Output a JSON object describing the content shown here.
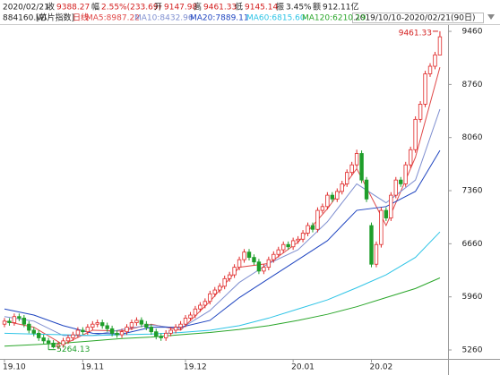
{
  "chart_data": {
    "type": "candlestick",
    "date": "2020/02/21",
    "info": [
      {
        "label": "收",
        "value": "9388.27",
        "color": "#d42020"
      },
      {
        "label": "幅",
        "value": "2.55%(233.69)",
        "color": "#d42020"
      },
      {
        "label": "开",
        "value": "9147.98",
        "color": "#d42020"
      },
      {
        "label": "高",
        "value": "9461.33",
        "color": "#d42020"
      },
      {
        "label": "低",
        "value": "9145.14",
        "color": "#d42020"
      },
      {
        "label": "振",
        "value": "3.45%",
        "color": "#222222"
      },
      {
        "label": "额",
        "value": "912.11亿",
        "color": "#222222"
      }
    ],
    "code": "884160.WI",
    "name": "[芯片指数]",
    "period": "日线",
    "range": "2019/10/10-2020/02/21(90日)",
    "categories": [
      "19.10",
      null,
      null,
      null,
      null,
      null,
      null,
      null,
      null,
      null,
      null,
      null,
      null,
      null,
      null,
      null,
      "19.11",
      null,
      null,
      null,
      null,
      null,
      null,
      null,
      null,
      null,
      null,
      null,
      null,
      null,
      null,
      null,
      null,
      null,
      null,
      null,
      null,
      "19.12",
      null,
      null,
      null,
      null,
      null,
      null,
      null,
      null,
      null,
      null,
      null,
      null,
      null,
      null,
      null,
      null,
      null,
      null,
      null,
      null,
      null,
      "20.01",
      null,
      null,
      null,
      null,
      null,
      null,
      null,
      null,
      null,
      null,
      null,
      null,
      null,
      null,
      null,
      "20.02",
      null,
      null,
      null,
      null,
      null,
      null,
      null,
      null,
      null,
      null,
      null,
      null,
      null,
      null
    ],
    "open": [
      5600,
      5640,
      5620,
      5700,
      5680,
      5600,
      5520,
      5480,
      5420,
      5380,
      5350,
      5300,
      5330,
      5380,
      5420,
      5460,
      5520,
      5500,
      5560,
      5600,
      5620,
      5580,
      5540,
      5480,
      5460,
      5500,
      5560,
      5620,
      5650,
      5600,
      5560,
      5500,
      5440,
      5420,
      5480,
      5520,
      5560,
      5600,
      5680,
      5720,
      5800,
      5850,
      5900,
      6000,
      6050,
      6100,
      6200,
      6250,
      6350,
      6450,
      6550,
      6480,
      6420,
      6300,
      6350,
      6450,
      6520,
      6580,
      6650,
      6620,
      6700,
      6720,
      6800,
      6900,
      6850,
      7100,
      7150,
      7300,
      7250,
      7350,
      7450,
      7600,
      7700,
      7850,
      7500,
      6900,
      6390,
      6650,
      7100,
      7000,
      7300,
      7500,
      7450,
      7700,
      7900,
      8300,
      8500,
      8900,
      9000,
      9147.98
    ],
    "high": [
      5680,
      5680,
      5740,
      5740,
      5720,
      5640,
      5560,
      5520,
      5460,
      5420,
      5390,
      5370,
      5420,
      5460,
      5500,
      5560,
      5560,
      5600,
      5640,
      5660,
      5660,
      5620,
      5580,
      5520,
      5540,
      5600,
      5660,
      5690,
      5690,
      5640,
      5600,
      5540,
      5480,
      5520,
      5560,
      5600,
      5640,
      5720,
      5760,
      5840,
      5890,
      5940,
      6040,
      6090,
      6140,
      6240,
      6290,
      6390,
      6490,
      6590,
      6590,
      6520,
      6460,
      6390,
      6490,
      6560,
      6620,
      6690,
      6690,
      6740,
      6760,
      6840,
      6940,
      6940,
      7140,
      7190,
      7340,
      7340,
      7390,
      7490,
      7640,
      7740,
      7900,
      7890,
      7540,
      6940,
      6690,
      7140,
      7140,
      7340,
      7540,
      7540,
      7740,
      7940,
      8340,
      8540,
      8940,
      9040,
      9190,
      9461.33
    ],
    "low": [
      5560,
      5580,
      5580,
      5640,
      5560,
      5480,
      5440,
      5380,
      5340,
      5264.13,
      5280,
      5270,
      5290,
      5340,
      5380,
      5420,
      5460,
      5460,
      5520,
      5560,
      5540,
      5500,
      5440,
      5420,
      5420,
      5460,
      5520,
      5580,
      5560,
      5520,
      5460,
      5400,
      5380,
      5380,
      5440,
      5480,
      5520,
      5560,
      5640,
      5680,
      5760,
      5810,
      5860,
      5960,
      6010,
      6060,
      6160,
      6210,
      6310,
      6410,
      6440,
      6380,
      6260,
      6260,
      6310,
      6410,
      6480,
      6540,
      6580,
      6580,
      6660,
      6680,
      6760,
      6810,
      6810,
      7060,
      7110,
      7210,
      7210,
      7310,
      7410,
      7560,
      7660,
      7460,
      7210,
      6350,
      6350,
      6610,
      6960,
      6960,
      7260,
      7410,
      7410,
      7660,
      7860,
      8260,
      8460,
      8860,
      8960,
      9145.14
    ],
    "close": [
      5640,
      5620,
      5700,
      5680,
      5600,
      5520,
      5480,
      5420,
      5380,
      5350,
      5300,
      5330,
      5380,
      5420,
      5460,
      5520,
      5500,
      5560,
      5600,
      5620,
      5580,
      5540,
      5480,
      5460,
      5500,
      5560,
      5620,
      5650,
      5600,
      5560,
      5500,
      5440,
      5420,
      5480,
      5520,
      5560,
      5600,
      5680,
      5720,
      5800,
      5850,
      5900,
      6000,
      6050,
      6100,
      6200,
      6250,
      6350,
      6450,
      6550,
      6480,
      6420,
      6300,
      6350,
      6450,
      6520,
      6580,
      6650,
      6620,
      6700,
      6720,
      6800,
      6900,
      6850,
      7100,
      7150,
      7300,
      7250,
      7350,
      7450,
      7600,
      7700,
      7850,
      7500,
      7250,
      6390,
      6650,
      7100,
      7000,
      7300,
      7500,
      7450,
      7700,
      7900,
      8300,
      8500,
      8900,
      9000,
      9150,
      9388.27
    ],
    "up_color": "#e02828",
    "down_color": "#1e9e2a",
    "series": [
      {
        "name": "MA5:8987.22",
        "color": "#e04848",
        "x": [
          0,
          6,
          12,
          18,
          24,
          30,
          36,
          42,
          48,
          54,
          60,
          66,
          72,
          78,
          84,
          89
        ],
        "values": [
          5640,
          5560,
          5330,
          5520,
          5510,
          5600,
          5520,
          5900,
          6350,
          6400,
          6680,
          7120,
          7650,
          6900,
          7800,
          8987.22
        ]
      },
      {
        "name": "MA10:8432.96",
        "color": "#7f8fd0",
        "x": [
          0,
          6,
          12,
          18,
          24,
          30,
          36,
          42,
          48,
          54,
          60,
          66,
          72,
          78,
          84,
          89
        ],
        "values": [
          5700,
          5640,
          5450,
          5450,
          5530,
          5590,
          5540,
          5780,
          6150,
          6400,
          6580,
          6950,
          7450,
          7200,
          7500,
          8432.96
        ]
      },
      {
        "name": "MA20:7889.11",
        "color": "#1f45c0",
        "x": [
          0,
          6,
          12,
          18,
          24,
          30,
          36,
          42,
          48,
          54,
          60,
          66,
          72,
          78,
          84,
          89
        ],
        "values": [
          5800,
          5720,
          5580,
          5480,
          5470,
          5560,
          5560,
          5650,
          5950,
          6200,
          6450,
          6700,
          7100,
          7150,
          7350,
          7889.11
        ]
      },
      {
        "name": "MA60:6815.60",
        "color": "#2ec4e6",
        "x": [
          0,
          6,
          12,
          18,
          24,
          30,
          36,
          42,
          48,
          54,
          60,
          66,
          72,
          78,
          84,
          89
        ],
        "values": [
          5480,
          5470,
          5460,
          5450,
          5460,
          5470,
          5490,
          5520,
          5580,
          5680,
          5800,
          5920,
          6080,
          6250,
          6480,
          6815.6
        ]
      },
      {
        "name": "MA120:6210.19",
        "color": "#2aa62a",
        "x": [
          0,
          6,
          12,
          18,
          24,
          30,
          36,
          42,
          48,
          54,
          60,
          66,
          72,
          78,
          84,
          89
        ],
        "values": [
          5310,
          5330,
          5350,
          5380,
          5410,
          5430,
          5460,
          5490,
          5530,
          5580,
          5650,
          5730,
          5830,
          5950,
          6070,
          6210.19
        ]
      }
    ],
    "ylim": [
      5154,
      9543
    ],
    "yticks": [
      5260,
      5960,
      6660,
      7360,
      8060,
      8760,
      9460
    ],
    "grid": false
  }
}
